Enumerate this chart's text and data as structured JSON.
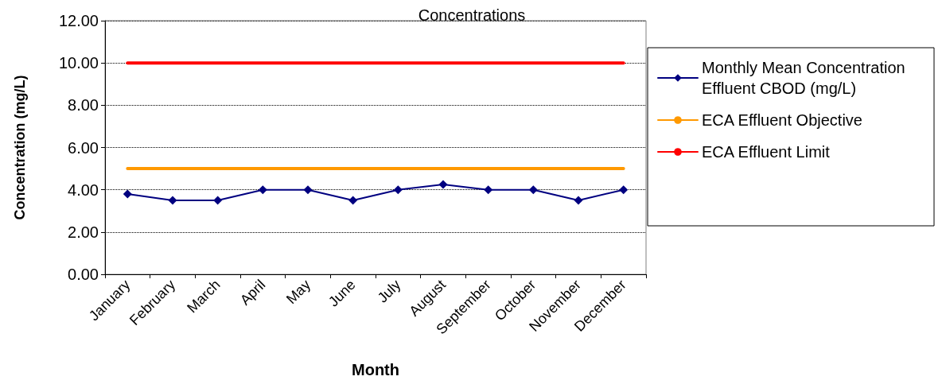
{
  "chart_data": {
    "type": "line",
    "title": "Concentrations",
    "xlabel": "Month",
    "ylabel": "Concentration (mg/L)",
    "categories": [
      "January",
      "February",
      "March",
      "April",
      "May",
      "June",
      "July",
      "August",
      "September",
      "October",
      "November",
      "December"
    ],
    "series": [
      {
        "name": "Monthly Mean Concentration Effluent CBOD (mg/L)",
        "color": "#000080",
        "marker": "diamond",
        "values": [
          3.8,
          3.5,
          3.5,
          4.0,
          4.0,
          3.5,
          4.0,
          4.25,
          4.0,
          4.0,
          3.5,
          4.0
        ]
      },
      {
        "name": "ECA Effluent Objective",
        "color": "#ff9900",
        "marker": "none",
        "values": [
          5,
          5,
          5,
          5,
          5,
          5,
          5,
          5,
          5,
          5,
          5,
          5
        ]
      },
      {
        "name": "ECA Effluent Limit",
        "color": "#ff0000",
        "marker": "none",
        "values": [
          10,
          10,
          10,
          10,
          10,
          10,
          10,
          10,
          10,
          10,
          10,
          10
        ]
      }
    ],
    "ylim": [
      0,
      12
    ],
    "yticks": [
      {
        "value": 0,
        "label": "0.00"
      },
      {
        "value": 2,
        "label": "2.00"
      },
      {
        "value": 4,
        "label": "4.00"
      },
      {
        "value": 6,
        "label": "6.00"
      },
      {
        "value": 8,
        "label": "8.00"
      },
      {
        "value": 10,
        "label": "10.00"
      },
      {
        "value": 12,
        "label": "12.00"
      }
    ],
    "grid": "y",
    "legend": "right",
    "line_style": "solid"
  }
}
